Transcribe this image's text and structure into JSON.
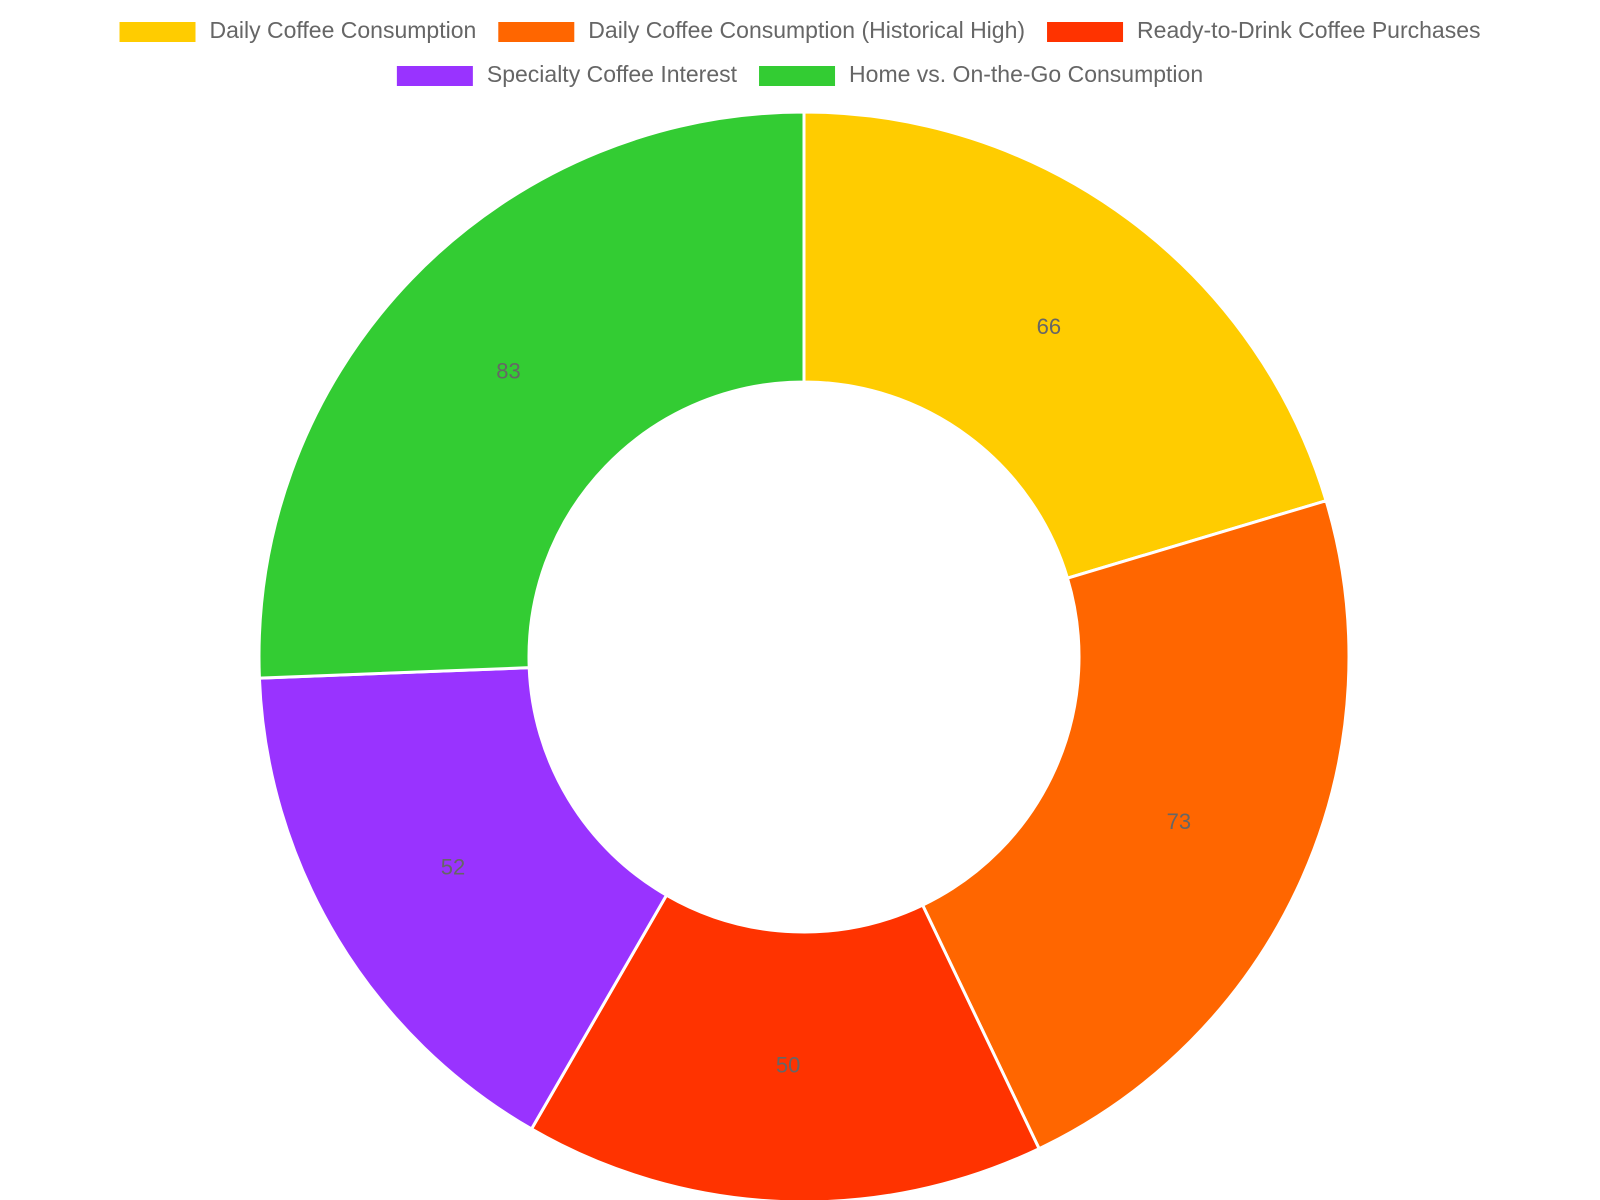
{
  "chart_data": {
    "type": "doughnut",
    "categories": [
      "Daily Coffee Consumption",
      "Daily Coffee Consumption (Historical High)",
      "Ready-to-Drink Coffee Purchases",
      "Specialty Coffee Interest",
      "Home vs. On-the-Go Consumption"
    ],
    "values": [
      66,
      73,
      50,
      52,
      83
    ],
    "colors": [
      "#ffcc00",
      "#ff6600",
      "#ff3300",
      "#9933ff",
      "#33cc33"
    ],
    "legend": "top"
  }
}
